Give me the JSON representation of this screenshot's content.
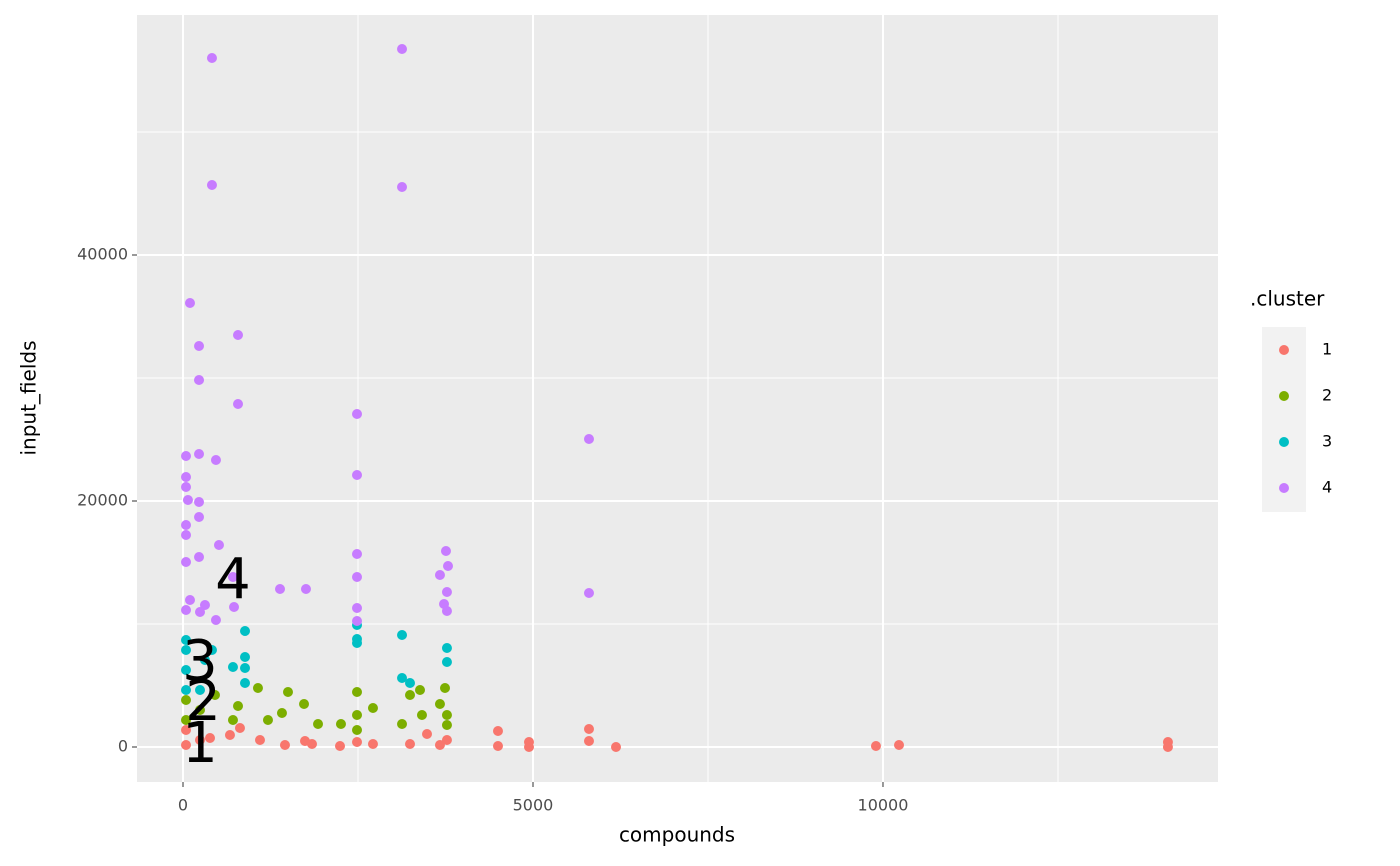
{
  "chart_data": {
    "type": "scatter",
    "x_label": "compounds",
    "y_label": "input_fields",
    "legend_title": ".cluster",
    "legend_position": "right",
    "grid": true,
    "xlim": [
      -657,
      14786
    ],
    "ylim": [
      -2846,
      59512
    ],
    "xticks": [
      0,
      5000,
      10000
    ],
    "yticks": [
      0,
      20000,
      40000
    ],
    "xminor": [
      2500,
      7500,
      12500
    ],
    "yminor": [
      10000,
      30000,
      50000
    ],
    "series": [
      {
        "name": "1",
        "color": "#F8766D",
        "x": [
          43,
          243,
          671,
          1100,
          1457,
          1743,
          1843,
          2243,
          2486,
          2714,
          3243,
          3486,
          3671,
          3771,
          4500,
          4500,
          4943,
          4943,
          5800,
          5800,
          6186,
          9900,
          10229,
          14071,
          14071,
          43,
          386,
          814
        ],
        "values": [
          163,
          569,
          976,
          569,
          163,
          488,
          244,
          81,
          407,
          244,
          244,
          1057,
          163,
          569,
          1301,
          81,
          407,
          0,
          1463,
          488,
          0,
          81,
          163,
          407,
          0,
          1382,
          732,
          1545
        ]
      },
      {
        "name": "2",
        "color": "#7CAE00",
        "x": [
          1071,
          1500,
          2486,
          3386,
          3743,
          1729,
          786,
          3243,
          3671,
          2714,
          1414,
          1214,
          2486,
          3414,
          3771,
          1929,
          2257,
          3129,
          43,
          43,
          243,
          457,
          714,
          3771,
          2486
        ],
        "values": [
          4797,
          4472,
          4472,
          4634,
          4797,
          3496,
          3333,
          4228,
          3496,
          3171,
          2764,
          2195,
          2602,
          2602,
          2602,
          1870,
          1870,
          1870,
          3821,
          2195,
          3008,
          4228,
          2195,
          1789,
          1382
        ]
      },
      {
        "name": "3",
        "color": "#00BFC4",
        "x": [
          2486,
          886,
          43,
          2486,
          3129,
          3771,
          3771,
          886,
          43,
          414,
          714,
          886,
          3129,
          3243,
          886,
          43,
          314,
          43,
          243,
          2486
        ],
        "values": [
          9919,
          9431,
          8699,
          8780,
          9106,
          8049,
          6911,
          7317,
          7886,
          7886,
          6504,
          6423,
          5610,
          5203,
          5203,
          6260,
          7073,
          4634,
          4634,
          8455
        ]
      },
      {
        "name": "4",
        "color": "#C77CFF",
        "x": [
          414,
          3129,
          414,
          3129,
          100,
          786,
          229,
          229,
          786,
          2486,
          5800,
          43,
          229,
          471,
          2486,
          43,
          43,
          229,
          71,
          229,
          43,
          43,
          3757,
          2486,
          514,
          229,
          43,
          3786,
          3671,
          2486,
          714,
          1386,
          1757,
          3771,
          5800,
          2486,
          100,
          314,
          729,
          3729,
          3771,
          471,
          2486,
          243,
          43
        ],
        "values": [
          56016,
          56748,
          45691,
          45528,
          36098,
          33496,
          32602,
          29837,
          27886,
          27073,
          25041,
          23659,
          23821,
          23333,
          22114,
          21951,
          21138,
          19919,
          20081,
          18699,
          18049,
          17236,
          15935,
          15691,
          16423,
          15447,
          15041,
          14715,
          13984,
          13821,
          13821,
          12846,
          12846,
          12602,
          12520,
          11301,
          11951,
          11545,
          11382,
          11626,
          11057,
          10325,
          10244,
          10976,
          11138
        ]
      }
    ],
    "annotations": [
      {
        "text": "1",
        "x": 243,
        "y": 0
      },
      {
        "text": "2",
        "x": 286,
        "y": 3415
      },
      {
        "text": "3",
        "x": 243,
        "y": 6667
      },
      {
        "text": "4",
        "x": 714,
        "y": 13333
      }
    ]
  }
}
